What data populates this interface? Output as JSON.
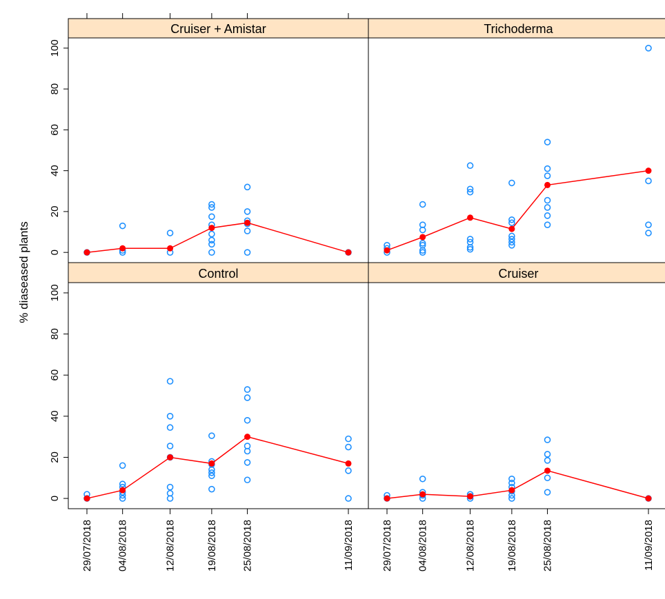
{
  "chart_data": {
    "type": "scatter",
    "ylabel": "% diaseased plants",
    "x_ticks": [
      "29/07/2018",
      "04/08/2018",
      "12/08/2018",
      "19/08/2018",
      "25/08/2018",
      "11/09/2018"
    ],
    "ylim": [
      -5,
      105
    ],
    "y_ticks": [
      0,
      20,
      40,
      60,
      80,
      100
    ],
    "colors": {
      "points": "#1e90ff",
      "mean": "#ff0000",
      "strip": "#ffe4c4"
    },
    "panels": [
      {
        "title": "Cruiser + Amistar",
        "points": [
          [
            "29/07/2018",
            0
          ],
          [
            "04/08/2018",
            0
          ],
          [
            "04/08/2018",
            1
          ],
          [
            "04/08/2018",
            13
          ],
          [
            "12/08/2018",
            0
          ],
          [
            "12/08/2018",
            9.5
          ],
          [
            "19/08/2018",
            0
          ],
          [
            "19/08/2018",
            4
          ],
          [
            "19/08/2018",
            6
          ],
          [
            "19/08/2018",
            9
          ],
          [
            "19/08/2018",
            13.5
          ],
          [
            "19/08/2018",
            17.5
          ],
          [
            "19/08/2018",
            22
          ],
          [
            "19/08/2018",
            23.5
          ],
          [
            "25/08/2018",
            0
          ],
          [
            "25/08/2018",
            10.5
          ],
          [
            "25/08/2018",
            14
          ],
          [
            "25/08/2018",
            15.5
          ],
          [
            "25/08/2018",
            20
          ],
          [
            "25/08/2018",
            32
          ],
          [
            "11/09/2018",
            0
          ]
        ],
        "means": [
          [
            "29/07/2018",
            0
          ],
          [
            "04/08/2018",
            2
          ],
          [
            "12/08/2018",
            2
          ],
          [
            "19/08/2018",
            12
          ],
          [
            "25/08/2018",
            14.5
          ],
          [
            "11/09/2018",
            0
          ]
        ]
      },
      {
        "title": "Trichoderma",
        "points": [
          [
            "29/07/2018",
            0
          ],
          [
            "29/07/2018",
            2
          ],
          [
            "29/07/2018",
            3.5
          ],
          [
            "04/08/2018",
            0
          ],
          [
            "04/08/2018",
            1
          ],
          [
            "04/08/2018",
            3.5
          ],
          [
            "04/08/2018",
            4.5
          ],
          [
            "04/08/2018",
            11
          ],
          [
            "04/08/2018",
            13.5
          ],
          [
            "04/08/2018",
            23.5
          ],
          [
            "12/08/2018",
            1.5
          ],
          [
            "12/08/2018",
            2.5
          ],
          [
            "12/08/2018",
            5
          ],
          [
            "12/08/2018",
            6.5
          ],
          [
            "12/08/2018",
            29.5
          ],
          [
            "12/08/2018",
            31
          ],
          [
            "12/08/2018",
            42.5
          ],
          [
            "19/08/2018",
            3.5
          ],
          [
            "19/08/2018",
            5
          ],
          [
            "19/08/2018",
            6.5
          ],
          [
            "19/08/2018",
            8
          ],
          [
            "19/08/2018",
            14.5
          ],
          [
            "19/08/2018",
            16
          ],
          [
            "19/08/2018",
            34
          ],
          [
            "25/08/2018",
            13.5
          ],
          [
            "25/08/2018",
            18
          ],
          [
            "25/08/2018",
            22
          ],
          [
            "25/08/2018",
            25.5
          ],
          [
            "25/08/2018",
            37.5
          ],
          [
            "25/08/2018",
            41
          ],
          [
            "25/08/2018",
            54
          ],
          [
            "11/09/2018",
            9.5
          ],
          [
            "11/09/2018",
            13.5
          ],
          [
            "11/09/2018",
            35
          ],
          [
            "11/09/2018",
            100
          ]
        ],
        "means": [
          [
            "29/07/2018",
            1
          ],
          [
            "04/08/2018",
            7.5
          ],
          [
            "12/08/2018",
            17
          ],
          [
            "19/08/2018",
            11.5
          ],
          [
            "25/08/2018",
            33
          ],
          [
            "11/09/2018",
            40
          ]
        ]
      },
      {
        "title": "Control",
        "points": [
          [
            "29/07/2018",
            0
          ],
          [
            "29/07/2018",
            2
          ],
          [
            "04/08/2018",
            0
          ],
          [
            "04/08/2018",
            1.5
          ],
          [
            "04/08/2018",
            3
          ],
          [
            "04/08/2018",
            5.5
          ],
          [
            "04/08/2018",
            7
          ],
          [
            "04/08/2018",
            16
          ],
          [
            "12/08/2018",
            0
          ],
          [
            "12/08/2018",
            2.5
          ],
          [
            "12/08/2018",
            5.5
          ],
          [
            "12/08/2018",
            20
          ],
          [
            "12/08/2018",
            25.5
          ],
          [
            "12/08/2018",
            34.5
          ],
          [
            "12/08/2018",
            40
          ],
          [
            "12/08/2018",
            57
          ],
          [
            "19/08/2018",
            4.5
          ],
          [
            "19/08/2018",
            11
          ],
          [
            "19/08/2018",
            12.5
          ],
          [
            "19/08/2018",
            14
          ],
          [
            "19/08/2018",
            16.5
          ],
          [
            "19/08/2018",
            18
          ],
          [
            "19/08/2018",
            30.5
          ],
          [
            "25/08/2018",
            9
          ],
          [
            "25/08/2018",
            17.5
          ],
          [
            "25/08/2018",
            23
          ],
          [
            "25/08/2018",
            25.5
          ],
          [
            "25/08/2018",
            38
          ],
          [
            "25/08/2018",
            49
          ],
          [
            "25/08/2018",
            53
          ],
          [
            "11/09/2018",
            0
          ],
          [
            "11/09/2018",
            13.5
          ],
          [
            "11/09/2018",
            25
          ],
          [
            "11/09/2018",
            29
          ]
        ],
        "means": [
          [
            "29/07/2018",
            0
          ],
          [
            "04/08/2018",
            4
          ],
          [
            "12/08/2018",
            20
          ],
          [
            "19/08/2018",
            17
          ],
          [
            "25/08/2018",
            30
          ],
          [
            "11/09/2018",
            17
          ]
        ]
      },
      {
        "title": "Cruiser",
        "points": [
          [
            "29/07/2018",
            0
          ],
          [
            "29/07/2018",
            1.5
          ],
          [
            "04/08/2018",
            0
          ],
          [
            "04/08/2018",
            1.5
          ],
          [
            "04/08/2018",
            3
          ],
          [
            "04/08/2018",
            9.5
          ],
          [
            "12/08/2018",
            0
          ],
          [
            "12/08/2018",
            1
          ],
          [
            "12/08/2018",
            2
          ],
          [
            "19/08/2018",
            0
          ],
          [
            "19/08/2018",
            1.5
          ],
          [
            "19/08/2018",
            3.5
          ],
          [
            "19/08/2018",
            5.5
          ],
          [
            "19/08/2018",
            7.5
          ],
          [
            "19/08/2018",
            9.5
          ],
          [
            "25/08/2018",
            3
          ],
          [
            "25/08/2018",
            10
          ],
          [
            "25/08/2018",
            18.5
          ],
          [
            "25/08/2018",
            21.5
          ],
          [
            "25/08/2018",
            28.5
          ],
          [
            "11/09/2018",
            0
          ]
        ],
        "means": [
          [
            "29/07/2018",
            0
          ],
          [
            "04/08/2018",
            2
          ],
          [
            "12/08/2018",
            1
          ],
          [
            "19/08/2018",
            4
          ],
          [
            "25/08/2018",
            13.5
          ],
          [
            "11/09/2018",
            0
          ]
        ]
      }
    ]
  }
}
